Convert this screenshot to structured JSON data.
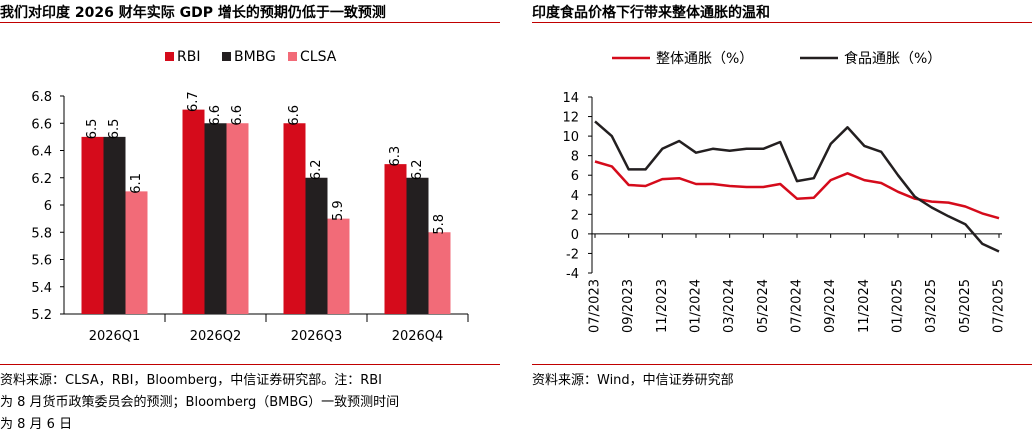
{
  "left": {
    "title": "我们对印度 2026 财年实际 GDP 增长的预期仍低于一致预测",
    "source_lines": [
      "资料来源：CLSA，RBI，Bloomberg，中信证券研究部。注：RBI",
      "为 8 月货币政策委员会的预测；Bloomberg（BMBG）一致预测时间",
      "为 8 月 6 日"
    ]
  },
  "right": {
    "title": "印度食品价格下行带来整体通胀的温和",
    "source_lines": [
      "资料来源：Wind，中信证券研究部"
    ]
  },
  "chart_data": [
    {
      "type": "bar",
      "title": "",
      "categories": [
        "2026Q1",
        "2026Q2",
        "2026Q3",
        "2026Q4"
      ],
      "series": [
        {
          "name": "RBI",
          "values": [
            6.5,
            6.7,
            6.6,
            6.3
          ],
          "color": "#d50b1b"
        },
        {
          "name": "BMBG",
          "values": [
            6.5,
            6.6,
            6.2,
            6.2
          ],
          "color": "#231f20"
        },
        {
          "name": "CLSA",
          "values": [
            6.1,
            6.6,
            5.9,
            5.8
          ],
          "color": "#f26b78"
        }
      ],
      "y_ticks": [
        "6.8",
        "6.6",
        "6.4",
        "6.2",
        "6",
        "5.8",
        "5.6",
        "5.4",
        "5.2"
      ],
      "ylim": [
        5.2,
        6.8
      ],
      "legend_position": "top",
      "grid": false
    },
    {
      "type": "line",
      "title": "",
      "x_labels": [
        "07/2023",
        "09/2023",
        "11/2023",
        "01/2024",
        "03/2024",
        "05/2024",
        "07/2024",
        "09/2024",
        "11/2024",
        "01/2025",
        "03/2025",
        "05/2025",
        "07/2025"
      ],
      "x": [
        "07/2023",
        "08/2023",
        "09/2023",
        "10/2023",
        "11/2023",
        "12/2023",
        "01/2024",
        "02/2024",
        "03/2024",
        "04/2024",
        "05/2024",
        "06/2024",
        "07/2024",
        "08/2024",
        "09/2024",
        "10/2024",
        "11/2024",
        "12/2024",
        "01/2025",
        "02/2025",
        "03/2025",
        "04/2025",
        "05/2025",
        "06/2025",
        "07/2025"
      ],
      "series": [
        {
          "name": "整体通胀（%）",
          "color": "#d50b1b",
          "values": [
            7.4,
            6.9,
            5.0,
            4.9,
            5.6,
            5.7,
            5.1,
            5.1,
            4.9,
            4.8,
            4.8,
            5.1,
            3.6,
            3.7,
            5.5,
            6.2,
            5.5,
            5.2,
            4.3,
            3.6,
            3.3,
            3.2,
            2.8,
            2.1,
            1.6
          ]
        },
        {
          "name": "食品通胀（%）",
          "color": "#231f20",
          "values": [
            11.5,
            10.0,
            6.6,
            6.6,
            8.7,
            9.5,
            8.3,
            8.7,
            8.5,
            8.7,
            8.7,
            9.4,
            5.4,
            5.7,
            9.2,
            10.9,
            9.0,
            8.4,
            6.0,
            3.8,
            2.7,
            1.8,
            0.99,
            -1.0,
            -1.8
          ]
        }
      ],
      "y_ticks": [
        "14",
        "12",
        "10",
        "8",
        "6",
        "4",
        "2",
        "0",
        "-2",
        "-4"
      ],
      "ylim": [
        -4,
        14
      ],
      "legend_position": "top",
      "grid": false
    }
  ]
}
